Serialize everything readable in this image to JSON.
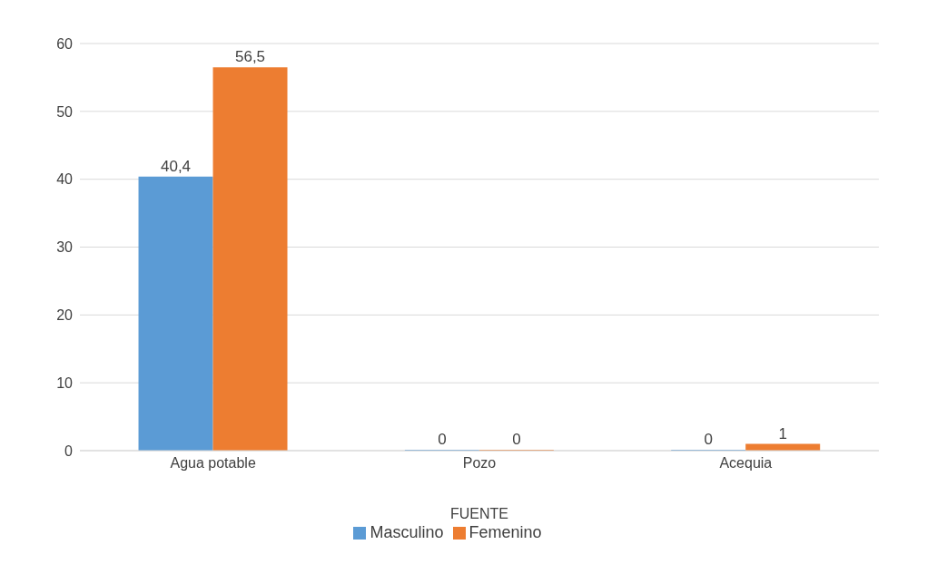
{
  "chart_data": {
    "type": "bar",
    "xlabel": "FUENTE",
    "categories": [
      "Agua potable",
      "Pozo",
      "Acequia"
    ],
    "series": [
      {
        "name": "Masculino",
        "color": "#5b9bd5",
        "values": [
          40.4,
          0,
          0
        ],
        "value_labels": [
          "40,4",
          "0",
          "0"
        ]
      },
      {
        "name": "Femenino",
        "color": "#ed7d31",
        "values": [
          56.5,
          0,
          1
        ],
        "value_labels": [
          "56,5",
          "0",
          "1"
        ]
      }
    ],
    "ylim": [
      0,
      60
    ],
    "yticks": [
      0,
      10,
      20,
      30,
      40,
      50,
      60
    ],
    "grid": "y",
    "legend": "bottom"
  }
}
